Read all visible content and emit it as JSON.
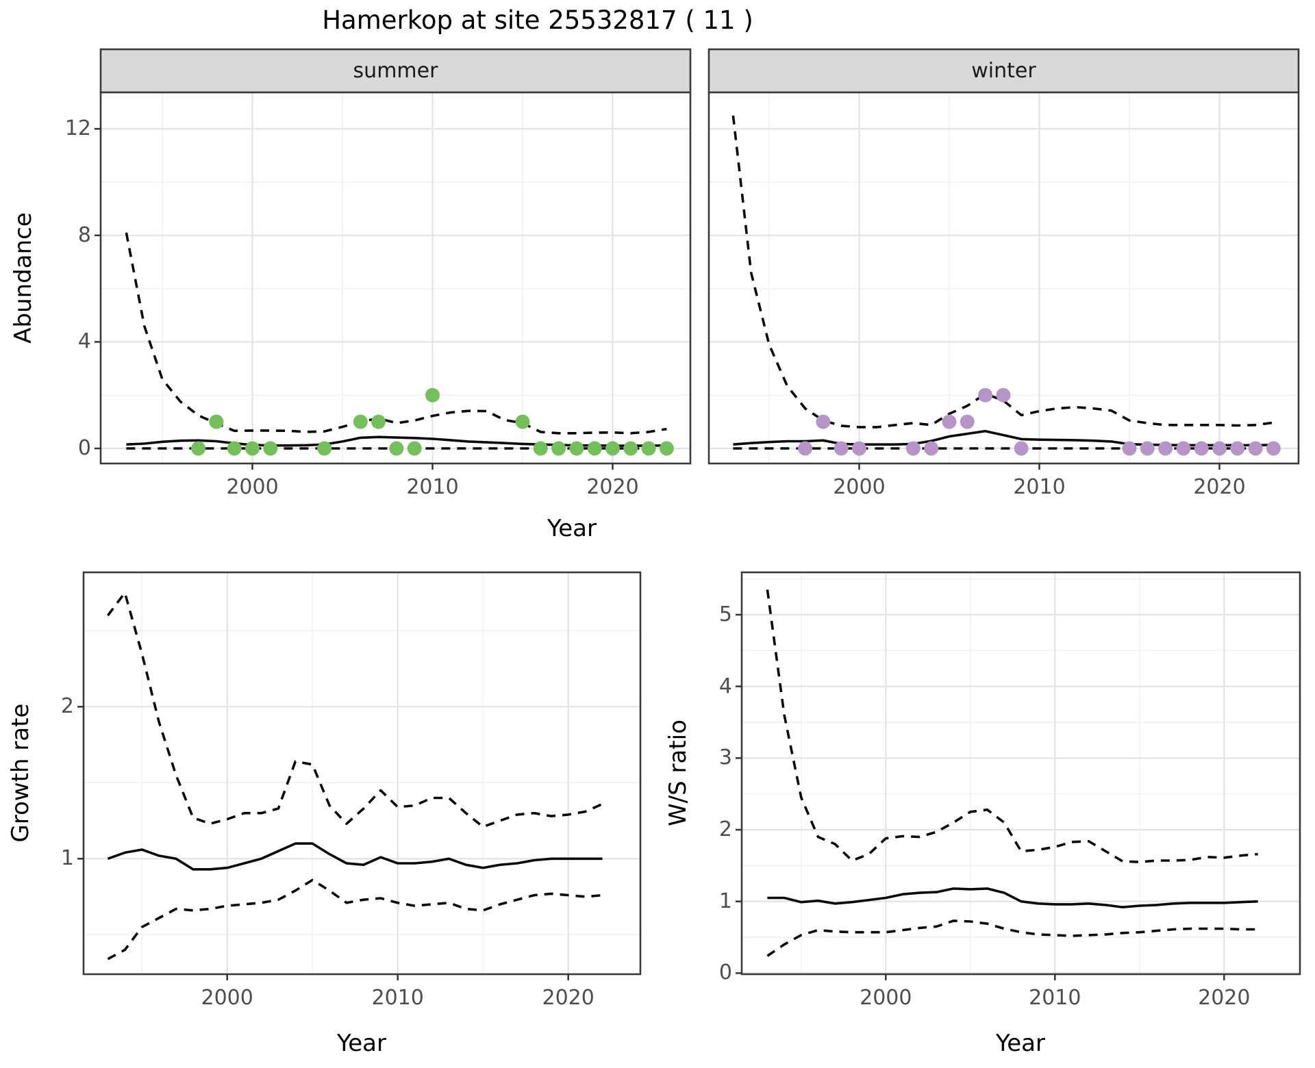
{
  "title": "Hamerkop at site 25532817 ( 11 )",
  "facets": {
    "summer": "summer",
    "winter": "winter"
  },
  "axis_titles": {
    "abundance": "Abundance",
    "year_top": "Year",
    "growth_rate": "Growth rate",
    "year_growth": "Year",
    "ws_ratio": "W/S ratio",
    "year_ws": "Year"
  },
  "colors": {
    "summer_point": "#73bf59",
    "winter_point": "#b794c7",
    "mean_line": "#0a0a0a",
    "ci_line": "#0a0a0a",
    "strip_fill": "#d9d9d9",
    "panel_border": "#3a3a3a",
    "grid_major": "#e3e3e3",
    "grid_minor": "#f1f1f1",
    "tick_text": "#4d4d4d"
  },
  "chart_data": [
    {
      "id": "abundance-summer",
      "type": "line",
      "facet": "summer",
      "title": "summer",
      "xlabel": "Year",
      "ylabel": "Abundance",
      "xlim": [
        1991.6,
        2024.3
      ],
      "ylim": [
        -0.35,
        13.4
      ],
      "x_ticks": [
        2000,
        2010,
        2020
      ],
      "y_ticks": [
        0,
        4,
        8,
        12
      ],
      "grid": true,
      "legend": "none",
      "years": [
        1993,
        1994,
        1995,
        1996,
        1997,
        1998,
        1999,
        2000,
        2001,
        2002,
        2003,
        2004,
        2005,
        2006,
        2007,
        2008,
        2009,
        2010,
        2011,
        2012,
        2013,
        2014,
        2015,
        2016,
        2017,
        2018,
        2019,
        2020,
        2021,
        2022,
        2023
      ],
      "series": [
        {
          "name": "mean",
          "style": "solid",
          "values": [
            0.15,
            0.18,
            0.25,
            0.29,
            0.3,
            0.27,
            0.19,
            0.13,
            0.11,
            0.11,
            0.12,
            0.15,
            0.26,
            0.4,
            0.43,
            0.41,
            0.39,
            0.36,
            0.31,
            0.26,
            0.23,
            0.2,
            0.17,
            0.15,
            0.13,
            0.11,
            0.11,
            0.1,
            0.1,
            0.1,
            0.11
          ]
        },
        {
          "name": "upper_ci",
          "style": "dashed",
          "values": [
            8.1,
            4.6,
            2.6,
            1.76,
            1.24,
            0.94,
            0.66,
            0.67,
            0.67,
            0.66,
            0.62,
            0.64,
            0.81,
            1.0,
            1.13,
            0.95,
            1.05,
            1.22,
            1.35,
            1.41,
            1.4,
            1.07,
            0.95,
            0.62,
            0.57,
            0.57,
            0.59,
            0.6,
            0.57,
            0.62,
            0.73
          ]
        },
        {
          "name": "lower_ci",
          "style": "dashed",
          "values": [
            0,
            0,
            0,
            0,
            0,
            0,
            0,
            0,
            0,
            0,
            0,
            0,
            0,
            0,
            0,
            0,
            0,
            0,
            0,
            0,
            0,
            0,
            0,
            0,
            0,
            0,
            0,
            0,
            0,
            0,
            0
          ]
        }
      ],
      "points": {
        "name": "observed_counts",
        "color": "#73bf59",
        "x": [
          1997,
          1998,
          1999,
          2000,
          2001,
          2004,
          2006,
          2007,
          2008,
          2009,
          2010,
          2015,
          2016,
          2017,
          2018,
          2019,
          2020,
          2021,
          2022,
          2023
        ],
        "y": [
          0,
          1,
          0,
          0,
          0,
          0,
          1,
          1,
          0,
          0,
          2,
          1,
          0,
          0,
          0,
          0,
          0,
          0,
          0,
          0
        ]
      }
    },
    {
      "id": "abundance-winter",
      "type": "line",
      "facet": "winter",
      "title": "winter",
      "xlabel": "Year",
      "ylabel": "Abundance",
      "xlim": [
        1991.6,
        2024.3
      ],
      "ylim": [
        -0.35,
        13.4
      ],
      "x_ticks": [
        2000,
        2010,
        2020
      ],
      "y_ticks": [
        0,
        4,
        8,
        12
      ],
      "grid": true,
      "legend": "none",
      "years": [
        1993,
        1994,
        1995,
        1996,
        1997,
        1998,
        1999,
        2000,
        2001,
        2002,
        2003,
        2004,
        2005,
        2006,
        2007,
        2008,
        2009,
        2010,
        2011,
        2012,
        2013,
        2014,
        2015,
        2016,
        2017,
        2018,
        2019,
        2020,
        2021,
        2022,
        2023
      ],
      "series": [
        {
          "name": "mean",
          "style": "solid",
          "values": [
            0.15,
            0.2,
            0.24,
            0.27,
            0.27,
            0.3,
            0.17,
            0.15,
            0.15,
            0.15,
            0.17,
            0.28,
            0.45,
            0.55,
            0.65,
            0.5,
            0.35,
            0.33,
            0.32,
            0.31,
            0.29,
            0.26,
            0.16,
            0.14,
            0.13,
            0.12,
            0.12,
            0.12,
            0.12,
            0.12,
            0.13
          ]
        },
        {
          "name": "upper_ci",
          "style": "dashed",
          "values": [
            12.5,
            6.6,
            3.9,
            2.35,
            1.5,
            1.05,
            0.85,
            0.8,
            0.8,
            0.88,
            0.95,
            0.88,
            1.3,
            1.6,
            2.05,
            1.8,
            1.25,
            1.4,
            1.5,
            1.55,
            1.5,
            1.42,
            1.05,
            0.95,
            0.88,
            0.88,
            0.88,
            0.88,
            0.86,
            0.88,
            0.97
          ]
        },
        {
          "name": "lower_ci",
          "style": "dashed",
          "values": [
            0,
            0,
            0,
            0,
            0,
            0,
            0,
            0,
            0,
            0,
            0,
            0,
            0,
            0,
            0,
            0,
            0,
            0,
            0,
            0,
            0,
            0,
            0,
            0,
            0,
            0,
            0,
            0,
            0,
            0,
            0
          ]
        }
      ],
      "points": {
        "name": "observed_counts",
        "color": "#b794c7",
        "x": [
          1997,
          1998,
          1999,
          2000,
          2003,
          2004,
          2005,
          2006,
          2007,
          2008,
          2009,
          2015,
          2016,
          2017,
          2018,
          2019,
          2020,
          2021,
          2022,
          2023
        ],
        "y": [
          0,
          1,
          0,
          0,
          0,
          0,
          1,
          1,
          2,
          2,
          0,
          0,
          0,
          0,
          0,
          0,
          0,
          0,
          0,
          0
        ]
      }
    },
    {
      "id": "growth-rate",
      "type": "line",
      "facet": null,
      "title": "",
      "xlabel": "Year",
      "ylabel": "Growth rate",
      "xlim": [
        1991.6,
        2024.2
      ],
      "ylim": [
        0.24,
        2.89
      ],
      "x_ticks": [
        2000,
        2010,
        2020
      ],
      "y_ticks": [
        1,
        2
      ],
      "grid": true,
      "legend": "none",
      "years": [
        1993,
        1994,
        1995,
        1996,
        1997,
        1998,
        1999,
        2000,
        2001,
        2002,
        2003,
        2004,
        2005,
        2006,
        2007,
        2008,
        2009,
        2010,
        2011,
        2012,
        2013,
        2014,
        2015,
        2016,
        2017,
        2018,
        2019,
        2020,
        2021,
        2022
      ],
      "series": [
        {
          "name": "mean",
          "style": "solid",
          "values": [
            1.0,
            1.04,
            1.06,
            1.02,
            1.0,
            0.93,
            0.93,
            0.94,
            0.97,
            1.0,
            1.05,
            1.1,
            1.1,
            1.03,
            0.97,
            0.96,
            1.01,
            0.97,
            0.97,
            0.98,
            1.0,
            0.96,
            0.94,
            0.96,
            0.97,
            0.99,
            1.0,
            1.0,
            1.0,
            1.0
          ]
        },
        {
          "name": "upper_ci",
          "style": "dashed",
          "values": [
            2.6,
            2.75,
            2.35,
            1.9,
            1.55,
            1.27,
            1.23,
            1.26,
            1.3,
            1.3,
            1.33,
            1.64,
            1.62,
            1.35,
            1.23,
            1.33,
            1.45,
            1.34,
            1.35,
            1.4,
            1.4,
            1.3,
            1.21,
            1.25,
            1.29,
            1.3,
            1.28,
            1.29,
            1.31,
            1.36
          ]
        },
        {
          "name": "lower_ci",
          "style": "dashed",
          "values": [
            0.34,
            0.4,
            0.55,
            0.61,
            0.67,
            0.66,
            0.67,
            0.69,
            0.7,
            0.71,
            0.73,
            0.79,
            0.86,
            0.79,
            0.71,
            0.73,
            0.74,
            0.71,
            0.69,
            0.7,
            0.71,
            0.67,
            0.66,
            0.7,
            0.73,
            0.76,
            0.77,
            0.76,
            0.75,
            0.76
          ]
        }
      ],
      "points": null
    },
    {
      "id": "ws-ratio",
      "type": "line",
      "facet": null,
      "title": "",
      "xlabel": "Year",
      "ylabel": "W/S ratio",
      "xlim": [
        1991.5,
        2024.5
      ],
      "ylim": [
        -0.02,
        5.62
      ],
      "x_ticks": [
        2000,
        2010,
        2020
      ],
      "y_ticks": [
        0,
        1,
        2,
        3,
        4,
        5
      ],
      "grid": true,
      "legend": "none",
      "years": [
        1993,
        1994,
        1995,
        1996,
        1997,
        1998,
        1999,
        2000,
        2001,
        2002,
        2003,
        2004,
        2005,
        2006,
        2007,
        2008,
        2009,
        2010,
        2011,
        2012,
        2013,
        2014,
        2015,
        2016,
        2017,
        2018,
        2019,
        2020,
        2021,
        2022
      ],
      "series": [
        {
          "name": "mean",
          "style": "solid",
          "values": [
            1.05,
            1.05,
            0.99,
            1.01,
            0.97,
            0.99,
            1.02,
            1.05,
            1.1,
            1.12,
            1.13,
            1.18,
            1.17,
            1.18,
            1.12,
            1.0,
            0.97,
            0.96,
            0.96,
            0.97,
            0.95,
            0.92,
            0.94,
            0.95,
            0.97,
            0.98,
            0.98,
            0.98,
            0.99,
            1.0
          ]
        },
        {
          "name": "upper_ci",
          "style": "dashed",
          "values": [
            5.35,
            3.6,
            2.45,
            1.9,
            1.8,
            1.57,
            1.66,
            1.88,
            1.91,
            1.9,
            1.97,
            2.1,
            2.25,
            2.28,
            2.1,
            1.7,
            1.72,
            1.76,
            1.83,
            1.84,
            1.7,
            1.56,
            1.55,
            1.57,
            1.57,
            1.58,
            1.62,
            1.61,
            1.64,
            1.66
          ]
        },
        {
          "name": "lower_ci",
          "style": "dashed",
          "values": [
            0.24,
            0.4,
            0.53,
            0.6,
            0.58,
            0.57,
            0.57,
            0.57,
            0.6,
            0.63,
            0.65,
            0.73,
            0.72,
            0.69,
            0.62,
            0.57,
            0.54,
            0.53,
            0.52,
            0.53,
            0.54,
            0.56,
            0.57,
            0.59,
            0.61,
            0.62,
            0.62,
            0.62,
            0.61,
            0.61
          ]
        }
      ],
      "points": null
    }
  ]
}
